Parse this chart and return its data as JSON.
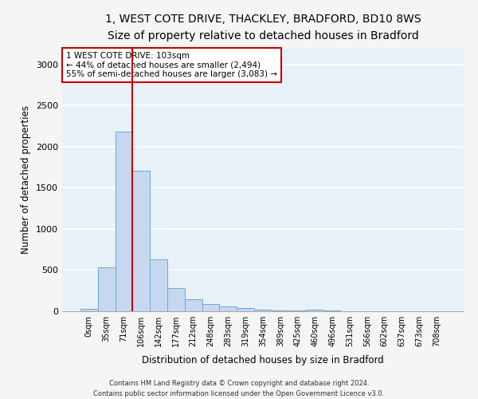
{
  "title_line1": "1, WEST COTE DRIVE, THACKLEY, BRADFORD, BD10 8WS",
  "title_line2": "Size of property relative to detached houses in Bradford",
  "xlabel": "Distribution of detached houses by size in Bradford",
  "ylabel": "Number of detached properties",
  "bar_labels": [
    "0sqm",
    "35sqm",
    "71sqm",
    "106sqm",
    "142sqm",
    "177sqm",
    "212sqm",
    "248sqm",
    "283sqm",
    "319sqm",
    "354sqm",
    "389sqm",
    "425sqm",
    "460sqm",
    "496sqm",
    "531sqm",
    "566sqm",
    "602sqm",
    "637sqm",
    "673sqm",
    "708sqm"
  ],
  "bar_values": [
    30,
    530,
    2180,
    1710,
    635,
    285,
    150,
    90,
    55,
    35,
    20,
    5,
    5,
    15,
    5,
    0,
    0,
    0,
    0,
    0,
    0
  ],
  "bar_color": "#c5d8f0",
  "bar_edge_color": "#6aaad4",
  "vline_x": 2.5,
  "vline_color": "#cc0000",
  "annotation_text": "1 WEST COTE DRIVE: 103sqm\n← 44% of detached houses are smaller (2,494)\n55% of semi-detached houses are larger (3,083) →",
  "ylim_max": 3200,
  "yticks": [
    0,
    500,
    1000,
    1500,
    2000,
    2500,
    3000
  ],
  "footnote_line1": "Contains HM Land Registry data © Crown copyright and database right 2024.",
  "footnote_line2": "Contains public sector information licensed under the Open Government Licence v3.0.",
  "bg_color": "#e8f0f8",
  "grid_color": "#ffffff",
  "fig_bg_color": "#f5f5f5"
}
